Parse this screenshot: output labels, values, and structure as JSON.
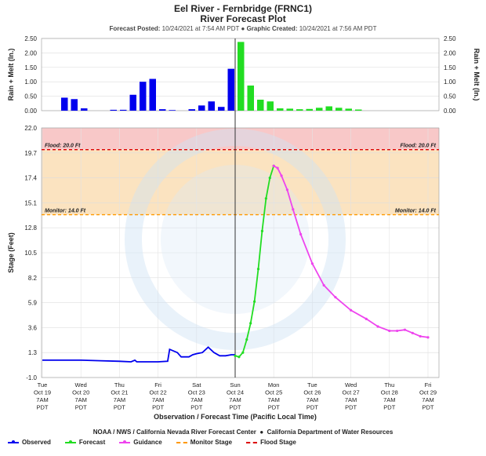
{
  "header": {
    "title1": "Eel River - Fernbridge (FRNC1)",
    "title2": "River Forecast Plot",
    "posted_label": "Forecast Posted:",
    "posted_value": "10/24/2021 at 7:54 AM PDT",
    "created_label": "Graphic Created:",
    "created_value": "10/24/2021 at 7:56 AM PDT"
  },
  "footer": {
    "agencies": "NOAA / NWS / California Nevada River Forecast Center",
    "dwr": "California Department of Water Resources"
  },
  "colors": {
    "observed": "#0000ee",
    "forecast": "#22dd22",
    "guidance": "#ee44ee",
    "monitor": "#ff9900",
    "flood": "#dd0000",
    "flood_band": "#f8c8c8",
    "monitor_band": "#fbe3c0"
  },
  "chart_data": [
    {
      "type": "bar",
      "ylabel": "Rain + Melt (In.)",
      "ylim": [
        0,
        2.5
      ],
      "yticks": [
        "0.00",
        "0.50",
        "1.00",
        "1.50",
        "2.00",
        "2.50"
      ],
      "series": [
        {
          "name": "Observed",
          "color": "#0000ee",
          "values": [
            0.45,
            0.4,
            0.08,
            0.0,
            0.0,
            0.03,
            0.03,
            0.55,
            1.0,
            1.1,
            0.05,
            0.02,
            0.0,
            0.05,
            0.18,
            0.32,
            0.13,
            1.45
          ]
        },
        {
          "name": "Forecast",
          "color": "#22dd22",
          "values": [
            2.38,
            0.87,
            0.38,
            0.32,
            0.08,
            0.07,
            0.05,
            0.06,
            0.1,
            0.15,
            0.1,
            0.07,
            0.04
          ]
        }
      ],
      "grid": true
    },
    {
      "type": "line",
      "xlabel": "Observation / Forecast Time (Pacific Local Time)",
      "ylabel": "Stage (Feet)",
      "ylim": [
        -1.0,
        22.0
      ],
      "yticks": [
        "-1.0",
        "1.3",
        "3.6",
        "5.9",
        "8.2",
        "10.5",
        "12.8",
        "15.1",
        "17.4",
        "19.7",
        "22.0"
      ],
      "xticks": [
        [
          "Tue",
          "Oct 19",
          "7AM",
          "PDT"
        ],
        [
          "Wed",
          "Oct 20",
          "7AM",
          "PDT"
        ],
        [
          "Thu",
          "Oct 21",
          "7AM",
          "PDT"
        ],
        [
          "Fri",
          "Oct 22",
          "7AM",
          "PDT"
        ],
        [
          "Sat",
          "Oct 23",
          "7AM",
          "PDT"
        ],
        [
          "Sun",
          "Oct 24",
          "7AM",
          "PDT"
        ],
        [
          "Mon",
          "Oct 25",
          "7AM",
          "PDT"
        ],
        [
          "Tue",
          "Oct 26",
          "7AM",
          "PDT"
        ],
        [
          "Wed",
          "Oct 27",
          "7AM",
          "PDT"
        ],
        [
          "Thu",
          "Oct 28",
          "7AM",
          "PDT"
        ],
        [
          "Fri",
          "Oct 29",
          "7AM",
          "PDT"
        ]
      ],
      "thresholds": [
        {
          "name": "Flood Stage",
          "label": "Flood: 20.0 Ft",
          "value": 20.0
        },
        {
          "name": "Monitor Stage",
          "label": "Monitor: 14.0 Ft",
          "value": 14.0
        }
      ],
      "series": [
        {
          "name": "Observed",
          "color": "#0000ee",
          "points": [
            [
              0,
              0.6
            ],
            [
              0.5,
              0.6
            ],
            [
              1.0,
              0.6
            ],
            [
              1.5,
              0.55
            ],
            [
              2.0,
              0.5
            ],
            [
              2.3,
              0.45
            ],
            [
              2.4,
              0.6
            ],
            [
              2.45,
              0.45
            ],
            [
              3.0,
              0.45
            ],
            [
              3.25,
              0.5
            ],
            [
              3.3,
              1.6
            ],
            [
              3.5,
              1.3
            ],
            [
              3.6,
              0.9
            ],
            [
              3.8,
              0.9
            ],
            [
              3.9,
              1.1
            ],
            [
              4.0,
              1.2
            ],
            [
              4.15,
              1.3
            ],
            [
              4.3,
              1.8
            ],
            [
              4.45,
              1.3
            ],
            [
              4.6,
              1.0
            ],
            [
              4.75,
              1.0
            ],
            [
              4.9,
              1.1
            ],
            [
              5.0,
              1.1
            ]
          ]
        },
        {
          "name": "Forecast",
          "color": "#22dd22",
          "points": [
            [
              5.0,
              1.0
            ],
            [
              5.1,
              0.9
            ],
            [
              5.2,
              1.3
            ],
            [
              5.3,
              2.5
            ],
            [
              5.4,
              4.0
            ],
            [
              5.5,
              6.0
            ],
            [
              5.6,
              9.0
            ],
            [
              5.7,
              12.5
            ],
            [
              5.8,
              15.5
            ],
            [
              5.9,
              17.4
            ],
            [
              6.0,
              18.5
            ]
          ]
        },
        {
          "name": "Guidance",
          "color": "#ee44ee",
          "points": [
            [
              6.0,
              18.5
            ],
            [
              6.1,
              18.3
            ],
            [
              6.2,
              17.6
            ],
            [
              6.35,
              16.3
            ],
            [
              6.5,
              14.5
            ],
            [
              6.7,
              12.2
            ],
            [
              7.0,
              9.5
            ],
            [
              7.3,
              7.5
            ],
            [
              7.6,
              6.4
            ],
            [
              8.0,
              5.2
            ],
            [
              8.4,
              4.4
            ],
            [
              8.7,
              3.7
            ],
            [
              9.0,
              3.3
            ],
            [
              9.2,
              3.3
            ],
            [
              9.4,
              3.4
            ],
            [
              9.6,
              3.1
            ],
            [
              9.8,
              2.8
            ],
            [
              10.0,
              2.7
            ]
          ]
        }
      ],
      "current_time_x": 5.0,
      "grid": true
    }
  ],
  "legend": [
    {
      "label": "Observed",
      "color": "#0000ee",
      "style": "solid"
    },
    {
      "label": "Forecast",
      "color": "#22dd22",
      "style": "solid"
    },
    {
      "label": "Guidance",
      "color": "#ee44ee",
      "style": "solid"
    },
    {
      "label": "Monitor Stage",
      "color": "#ff9900",
      "style": "dash"
    },
    {
      "label": "Flood Stage",
      "color": "#dd0000",
      "style": "dash"
    }
  ]
}
